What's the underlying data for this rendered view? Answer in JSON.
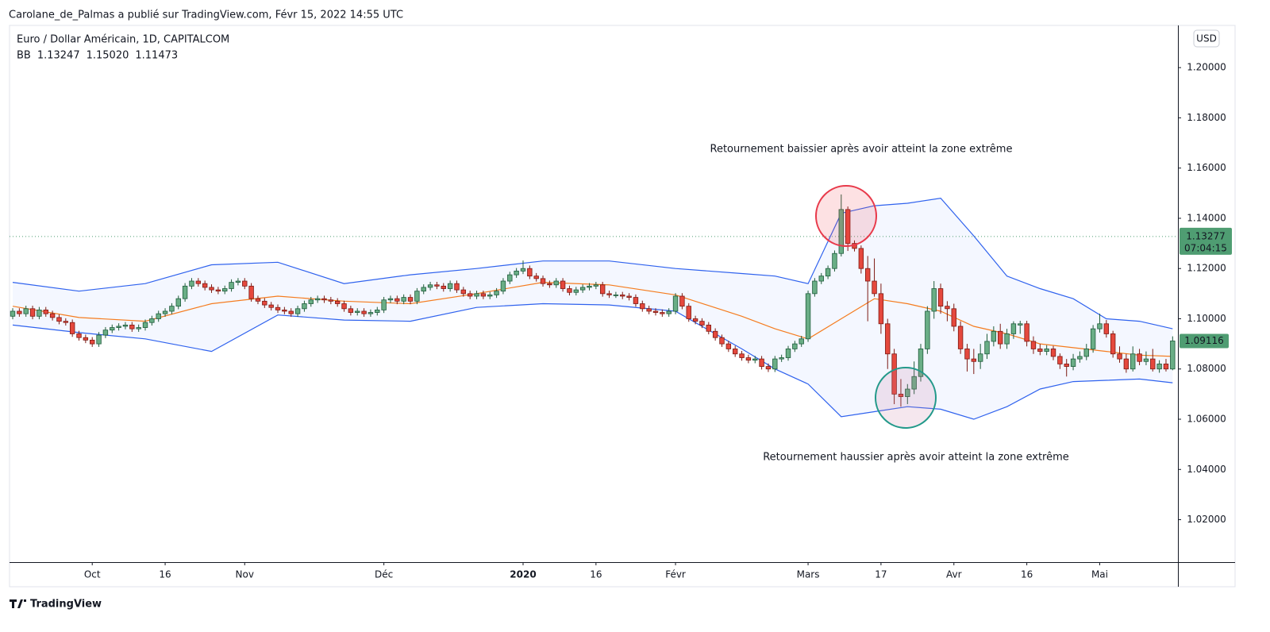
{
  "chart_data": {
    "type": "candlestick",
    "publisher_line": "Carolane_de_Palmas a publié sur TradingView.com, Févr 15, 2022 14:55 UTC",
    "title": "Euro / Dollar Américain, 1D, CAPITALCOM",
    "indicator": "BB",
    "currency": "USD",
    "watermark": "TradingView",
    "annotations": [
      {
        "text": "Retournement baissier après avoir atteint la zone extrême",
        "color": "#f23645"
      },
      {
        "text": "Retournement haussier après avoir atteint la zone extrême",
        "color": "#22998a"
      }
    ],
    "up_color": "#6aae86",
    "up_border": "#1f5c3b",
    "down_color": "#e5483d",
    "down_border": "#7d1a13",
    "band_fill": "rgba(41,98,255,0.05)",
    "current_price": 1.13277,
    "countdown": "07:04:15",
    "price_label_color": "#4f9d72",
    "xlim": [
      -0.48,
      175.8
    ],
    "ylim": [
      1.0031,
      1.2168
    ],
    "yticks": [
      {
        "value": 1.02,
        "label": "1.02000"
      },
      {
        "value": 1.04,
        "label": "1.04000"
      },
      {
        "value": 1.06,
        "label": "1.06000"
      },
      {
        "value": 1.08,
        "label": "1.08000"
      },
      {
        "value": 1.1,
        "label": "1.10000"
      },
      {
        "value": 1.12,
        "label": "1.12000"
      },
      {
        "value": 1.14,
        "label": "1.14000"
      },
      {
        "value": 1.16,
        "label": "1.16000"
      },
      {
        "value": 1.18,
        "label": "1.18000"
      },
      {
        "value": 1.2,
        "label": "1.20000"
      }
    ],
    "xticks": [
      {
        "value": 12,
        "label": "Oct"
      },
      {
        "value": 23,
        "label": "16"
      },
      {
        "value": 35,
        "label": "Nov"
      },
      {
        "value": 56,
        "label": "Déc"
      },
      {
        "value": 77,
        "label": "2020"
      },
      {
        "value": 88,
        "label": "16"
      },
      {
        "value": 100,
        "label": "Févr"
      },
      {
        "value": 120,
        "label": "Mars"
      },
      {
        "value": 131,
        "label": "17"
      },
      {
        "value": 142,
        "label": "Avr"
      },
      {
        "value": 153,
        "label": "16"
      },
      {
        "value": 164,
        "label": "Mai"
      }
    ],
    "series": [
      {
        "color": "#f57c1f",
        "legend_value": {
          "value": 1.13247,
          "label": "1.13247"
        },
        "x": [
          0,
          10,
          20,
          30,
          40,
          50,
          60,
          70,
          80,
          90,
          100,
          110,
          115,
          120,
          125,
          130,
          135,
          140,
          145,
          150,
          155,
          160,
          165,
          170,
          175
        ],
        "values": [
          1.105,
          1.1005,
          1.099,
          1.106,
          1.109,
          1.107,
          1.106,
          1.11,
          1.1145,
          1.1135,
          1.1095,
          1.101,
          1.096,
          1.092,
          1.1,
          1.108,
          1.106,
          1.103,
          1.097,
          1.094,
          1.09,
          1.0885,
          1.087,
          1.0855,
          1.085
        ]
      },
      {
        "color": "#2f62ee",
        "legend_value": {
          "value": 1.1502,
          "label": "1.15020"
        },
        "x": [
          0,
          10,
          20,
          30,
          40,
          50,
          60,
          70,
          80,
          90,
          100,
          110,
          115,
          120,
          125,
          130,
          135,
          140,
          145,
          150,
          155,
          160,
          165,
          170,
          175
        ],
        "values": [
          1.1145,
          1.111,
          1.114,
          1.1215,
          1.1225,
          1.114,
          1.1175,
          1.12,
          1.123,
          1.123,
          1.12,
          1.118,
          1.117,
          1.114,
          1.142,
          1.145,
          1.146,
          1.148,
          1.133,
          1.117,
          1.112,
          1.108,
          1.1,
          1.099,
          1.096
        ]
      },
      {
        "color": "#2f62ee",
        "legend_value": {
          "value": 1.11473,
          "label": "1.11473"
        },
        "x": [
          0,
          10,
          20,
          30,
          40,
          50,
          60,
          70,
          80,
          90,
          100,
          110,
          115,
          120,
          125,
          130,
          135,
          140,
          145,
          150,
          155,
          160,
          165,
          170,
          175
        ],
        "values": [
          1.0975,
          1.0945,
          1.092,
          1.087,
          1.1015,
          1.0995,
          1.099,
          1.1045,
          1.106,
          1.1055,
          1.103,
          1.088,
          1.08,
          1.074,
          1.061,
          1.063,
          1.065,
          1.064,
          1.06,
          1.065,
          1.072,
          1.075,
          1.0755,
          1.076,
          1.0745
        ]
      }
    ],
    "ohlc": [
      [
        1.101,
        1.1042,
        1.0998,
        1.103
      ],
      [
        1.103,
        1.1042,
        1.1008,
        1.102
      ],
      [
        1.102,
        1.1052,
        1.1008,
        1.104
      ],
      [
        1.104,
        1.1052,
        1.0998,
        1.101
      ],
      [
        1.101,
        1.1047,
        1.0998,
        1.1035
      ],
      [
        1.1035,
        1.1047,
        1.1008,
        1.102
      ],
      [
        1.102,
        1.1032,
        1.0993,
        1.1005
      ],
      [
        1.1005,
        1.1017,
        1.0978,
        1.099
      ],
      [
        1.099,
        1.1002,
        1.0973,
        1.0985
      ],
      [
        1.0985,
        1.0997,
        1.0928,
        1.094
      ],
      [
        1.094,
        1.0952,
        1.0913,
        1.0925
      ],
      [
        1.0925,
        1.0937,
        1.0903,
        1.0915
      ],
      [
        1.0915,
        1.0927,
        1.0888,
        1.09
      ],
      [
        1.09,
        1.0947,
        1.0888,
        1.0935
      ],
      [
        1.0935,
        1.0967,
        1.0923,
        1.0955
      ],
      [
        1.0955,
        1.0977,
        1.0943,
        1.0965
      ],
      [
        1.0965,
        1.0982,
        1.0953,
        1.097
      ],
      [
        1.097,
        1.0987,
        1.0958,
        1.0975
      ],
      [
        1.0975,
        1.0987,
        1.0948,
        1.096
      ],
      [
        1.096,
        1.0977,
        1.0948,
        1.0965
      ],
      [
        1.0965,
        1.0997,
        1.0953,
        1.0985
      ],
      [
        1.0985,
        1.1012,
        1.0973,
        1.1
      ],
      [
        1.1,
        1.1032,
        1.0988,
        1.102
      ],
      [
        1.102,
        1.1042,
        1.1008,
        1.103
      ],
      [
        1.103,
        1.1062,
        1.1018,
        1.105
      ],
      [
        1.105,
        1.1092,
        1.1038,
        1.108
      ],
      [
        1.108,
        1.1142,
        1.1068,
        1.113
      ],
      [
        1.113,
        1.1162,
        1.1118,
        1.115
      ],
      [
        1.115,
        1.1162,
        1.1128,
        1.114
      ],
      [
        1.114,
        1.1152,
        1.1113,
        1.1125
      ],
      [
        1.1125,
        1.1137,
        1.1103,
        1.1115
      ],
      [
        1.1115,
        1.1127,
        1.1098,
        1.111
      ],
      [
        1.111,
        1.1132,
        1.1098,
        1.112
      ],
      [
        1.112,
        1.1157,
        1.1108,
        1.1145
      ],
      [
        1.1145,
        1.1162,
        1.1133,
        1.115
      ],
      [
        1.115,
        1.1162,
        1.1118,
        1.113
      ],
      [
        1.113,
        1.1142,
        1.1068,
        1.108
      ],
      [
        1.108,
        1.1092,
        1.1058,
        1.107
      ],
      [
        1.107,
        1.1082,
        1.1043,
        1.1055
      ],
      [
        1.1055,
        1.1067,
        1.1033,
        1.1045
      ],
      [
        1.1045,
        1.1057,
        1.1023,
        1.1035
      ],
      [
        1.1035,
        1.1047,
        1.1018,
        1.103
      ],
      [
        1.103,
        1.1042,
        1.1008,
        1.102
      ],
      [
        1.102,
        1.1052,
        1.1008,
        1.104
      ],
      [
        1.104,
        1.1072,
        1.1028,
        1.106
      ],
      [
        1.106,
        1.1087,
        1.1048,
        1.1075
      ],
      [
        1.1075,
        1.1092,
        1.1063,
        1.108
      ],
      [
        1.108,
        1.1092,
        1.1063,
        1.1075
      ],
      [
        1.1075,
        1.1087,
        1.1058,
        1.107
      ],
      [
        1.107,
        1.1082,
        1.1048,
        1.106
      ],
      [
        1.106,
        1.1072,
        1.1028,
        1.104
      ],
      [
        1.104,
        1.1052,
        1.1013,
        1.1025
      ],
      [
        1.1025,
        1.1042,
        1.1013,
        1.103
      ],
      [
        1.103,
        1.1042,
        1.1008,
        1.102
      ],
      [
        1.102,
        1.1037,
        1.1008,
        1.1025
      ],
      [
        1.1025,
        1.1047,
        1.1013,
        1.1035
      ],
      [
        1.1035,
        1.1087,
        1.1023,
        1.1075
      ],
      [
        1.1075,
        1.1092,
        1.1063,
        1.108
      ],
      [
        1.108,
        1.1092,
        1.1058,
        1.107
      ],
      [
        1.107,
        1.1097,
        1.1058,
        1.1085
      ],
      [
        1.1085,
        1.1097,
        1.1058,
        1.107
      ],
      [
        1.107,
        1.1122,
        1.1058,
        1.111
      ],
      [
        1.111,
        1.1137,
        1.1098,
        1.1125
      ],
      [
        1.1125,
        1.1147,
        1.1113,
        1.1135
      ],
      [
        1.1135,
        1.1147,
        1.1118,
        1.113
      ],
      [
        1.113,
        1.1142,
        1.1108,
        1.112
      ],
      [
        1.112,
        1.1152,
        1.1108,
        1.114
      ],
      [
        1.114,
        1.1152,
        1.1103,
        1.1115
      ],
      [
        1.1115,
        1.1127,
        1.1088,
        1.11
      ],
      [
        1.11,
        1.1112,
        1.1078,
        1.109
      ],
      [
        1.109,
        1.1112,
        1.1078,
        1.11
      ],
      [
        1.11,
        1.1112,
        1.1078,
        1.109
      ],
      [
        1.109,
        1.1107,
        1.1078,
        1.1095
      ],
      [
        1.1095,
        1.1122,
        1.1083,
        1.111
      ],
      [
        1.111,
        1.1162,
        1.1098,
        1.115
      ],
      [
        1.115,
        1.1187,
        1.1138,
        1.1175
      ],
      [
        1.1175,
        1.1202,
        1.1163,
        1.119
      ],
      [
        1.119,
        1.1232,
        1.1178,
        1.12
      ],
      [
        1.12,
        1.1212,
        1.1158,
        1.117
      ],
      [
        1.117,
        1.1182,
        1.1148,
        1.116
      ],
      [
        1.116,
        1.1172,
        1.1128,
        1.114
      ],
      [
        1.114,
        1.1152,
        1.1123,
        1.1135
      ],
      [
        1.1135,
        1.1162,
        1.1123,
        1.115
      ],
      [
        1.115,
        1.1162,
        1.1108,
        1.112
      ],
      [
        1.112,
        1.1132,
        1.1093,
        1.1105
      ],
      [
        1.1105,
        1.1127,
        1.1093,
        1.1115
      ],
      [
        1.1115,
        1.1137,
        1.1103,
        1.1125
      ],
      [
        1.1125,
        1.1142,
        1.1113,
        1.113
      ],
      [
        1.113,
        1.1147,
        1.1118,
        1.1135
      ],
      [
        1.1135,
        1.1147,
        1.1088,
        1.11
      ],
      [
        1.11,
        1.1112,
        1.1083,
        1.1095
      ],
      [
        1.1095,
        1.1107,
        1.1083,
        1.1095
      ],
      [
        1.1095,
        1.1107,
        1.1078,
        1.109
      ],
      [
        1.109,
        1.1102,
        1.1073,
        1.1085
      ],
      [
        1.1085,
        1.1097,
        1.1048,
        1.106
      ],
      [
        1.106,
        1.1072,
        1.1028,
        1.104
      ],
      [
        1.104,
        1.1052,
        1.1018,
        1.103
      ],
      [
        1.103,
        1.1042,
        1.1013,
        1.1025
      ],
      [
        1.1025,
        1.1037,
        1.1008,
        1.102
      ],
      [
        1.102,
        1.1042,
        1.1008,
        1.103
      ],
      [
        1.103,
        1.1102,
        1.1018,
        1.109
      ],
      [
        1.109,
        1.1102,
        1.1038,
        1.105
      ],
      [
        1.105,
        1.1062,
        1.0988,
        1.1
      ],
      [
        1.1,
        1.1012,
        1.0978,
        1.099
      ],
      [
        1.099,
        1.1002,
        1.0963,
        1.0975
      ],
      [
        1.0975,
        1.0987,
        1.0938,
        1.095
      ],
      [
        1.095,
        1.0962,
        1.0913,
        1.0925
      ],
      [
        1.0925,
        1.0937,
        1.0888,
        1.09
      ],
      [
        1.09,
        1.0912,
        1.0868,
        1.088
      ],
      [
        1.088,
        1.0892,
        1.0848,
        1.086
      ],
      [
        1.086,
        1.0872,
        1.0833,
        1.0845
      ],
      [
        1.0845,
        1.0857,
        1.0823,
        1.0835
      ],
      [
        1.0835,
        1.0852,
        1.0823,
        1.084
      ],
      [
        1.084,
        1.0852,
        1.0798,
        1.081
      ],
      [
        1.081,
        1.0822,
        1.0788,
        1.08
      ],
      [
        1.08,
        1.0852,
        1.0788,
        1.084
      ],
      [
        1.084,
        1.0857,
        1.0828,
        1.0845
      ],
      [
        1.0845,
        1.0892,
        1.0833,
        1.088
      ],
      [
        1.088,
        1.0912,
        1.0868,
        1.09
      ],
      [
        1.09,
        1.0932,
        1.0888,
        1.092
      ],
      [
        1.092,
        1.1112,
        1.0908,
        1.11
      ],
      [
        1.11,
        1.1162,
        1.1088,
        1.115
      ],
      [
        1.115,
        1.1182,
        1.1138,
        1.117
      ],
      [
        1.117,
        1.1212,
        1.1158,
        1.12
      ],
      [
        1.12,
        1.1272,
        1.1188,
        1.126
      ],
      [
        1.126,
        1.1495,
        1.1248,
        1.1435
      ],
      [
        1.1435,
        1.1447,
        1.127,
        1.13
      ],
      [
        1.13,
        1.1312,
        1.1268,
        1.128
      ],
      [
        1.128,
        1.1292,
        1.118,
        1.12
      ],
      [
        1.12,
        1.125,
        1.099,
        1.115
      ],
      [
        1.115,
        1.124,
        1.1088,
        1.11
      ],
      [
        1.11,
        1.114,
        1.094,
        1.098
      ],
      [
        1.098,
        1.1,
        1.08,
        1.086
      ],
      [
        1.086,
        1.088,
        1.066,
        1.07
      ],
      [
        1.07,
        1.076,
        1.065,
        1.069
      ],
      [
        1.069,
        1.074,
        1.066,
        1.072
      ],
      [
        1.072,
        1.083,
        1.07,
        1.077
      ],
      [
        1.077,
        1.09,
        1.075,
        1.088
      ],
      [
        1.088,
        1.105,
        1.086,
        1.103
      ],
      [
        1.103,
        1.115,
        1.1,
        1.112
      ],
      [
        1.112,
        1.114,
        1.102,
        1.105
      ],
      [
        1.105,
        1.107,
        1.099,
        1.104
      ],
      [
        1.104,
        1.106,
        1.095,
        1.097
      ],
      [
        1.097,
        1.099,
        1.086,
        1.088
      ],
      [
        1.088,
        1.09,
        1.079,
        1.084
      ],
      [
        1.084,
        1.088,
        1.078,
        1.083
      ],
      [
        1.083,
        1.09,
        1.08,
        1.086
      ],
      [
        1.086,
        1.094,
        1.084,
        1.091
      ],
      [
        1.091,
        1.097,
        1.089,
        1.095
      ],
      [
        1.095,
        1.098,
        1.088,
        1.09
      ],
      [
        1.09,
        1.096,
        1.088,
        1.094
      ],
      [
        1.094,
        1.099,
        1.092,
        1.098
      ],
      [
        1.0975,
        1.0992,
        1.094,
        1.098
      ],
      [
        1.098,
        1.0992,
        1.089,
        1.091
      ],
      [
        1.091,
        1.093,
        1.086,
        1.088
      ],
      [
        1.088,
        1.09,
        1.0855,
        1.087
      ],
      [
        1.087,
        1.0895,
        1.0855,
        1.088
      ],
      [
        1.088,
        1.0892,
        1.0835,
        1.085
      ],
      [
        1.085,
        1.0862,
        1.08,
        1.082
      ],
      [
        1.082,
        1.084,
        1.077,
        1.081
      ],
      [
        1.081,
        1.086,
        1.0795,
        1.084
      ],
      [
        1.084,
        1.087,
        1.0825,
        1.085
      ],
      [
        1.085,
        1.09,
        1.0835,
        1.088
      ],
      [
        1.088,
        1.0975,
        1.0865,
        1.096
      ],
      [
        1.096,
        1.102,
        1.0945,
        1.098
      ],
      [
        1.098,
        1.0995,
        1.0925,
        1.094
      ],
      [
        1.094,
        1.0952,
        1.0845,
        1.086
      ],
      [
        1.086,
        1.089,
        1.0825,
        1.084
      ],
      [
        1.084,
        1.086,
        1.0785,
        1.08
      ],
      [
        1.08,
        1.089,
        1.079,
        1.086
      ],
      [
        1.086,
        1.088,
        1.0815,
        1.083
      ],
      [
        1.083,
        1.087,
        1.0815,
        1.084
      ],
      [
        1.084,
        1.088,
        1.079,
        1.08
      ],
      [
        1.08,
        1.0835,
        1.0785,
        1.082
      ],
      [
        1.082,
        1.084,
        1.079,
        1.08
      ],
      [
        1.08,
        1.093,
        1.0795,
        1.09116
      ]
    ]
  }
}
